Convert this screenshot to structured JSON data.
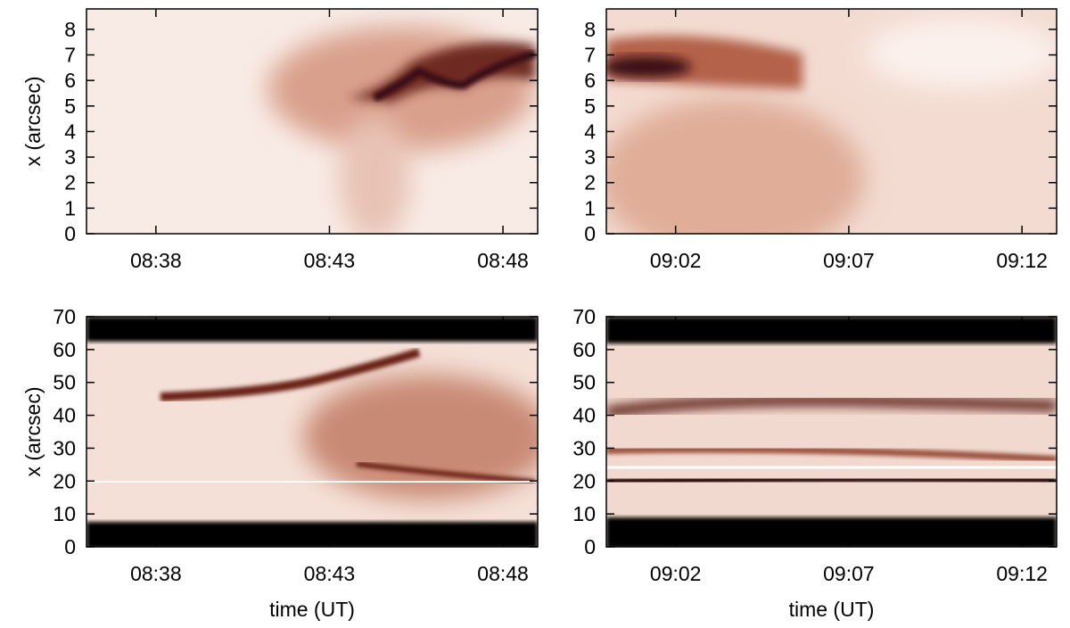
{
  "chart_data": [
    {
      "type": "heatmap",
      "ylabel": "x (arcsec)",
      "xlim": [
        "08:36",
        "08:49"
      ],
      "xticks": [
        "08:38",
        "08:43",
        "08:48"
      ],
      "ylim": [
        0,
        8.8
      ],
      "yticks": [
        0,
        1,
        2,
        3,
        4,
        5,
        6,
        7,
        8
      ]
    },
    {
      "type": "heatmap",
      "xlim": [
        "09:00",
        "09:13"
      ],
      "xticks": [
        "09:02",
        "09:07",
        "09:12"
      ],
      "ylim": [
        0,
        8.8
      ],
      "yticks": [
        0,
        1,
        2,
        3,
        4,
        5,
        6,
        7,
        8
      ]
    },
    {
      "type": "heatmap",
      "ylabel": "x (arcsec)",
      "xlabel": "time (UT)",
      "xlim": [
        "08:36",
        "08:49"
      ],
      "xticks": [
        "08:38",
        "08:43",
        "08:48"
      ],
      "ylim": [
        0,
        70
      ],
      "yticks": [
        0,
        10,
        20,
        30,
        40,
        50,
        60,
        70
      ]
    },
    {
      "type": "heatmap",
      "xlabel": "time (UT)",
      "xlim": [
        "09:00",
        "09:13"
      ],
      "xticks": [
        "09:02",
        "09:07",
        "09:12"
      ],
      "ylim": [
        0,
        70
      ],
      "yticks": [
        0,
        10,
        20,
        30,
        40,
        50,
        60,
        70
      ]
    }
  ]
}
